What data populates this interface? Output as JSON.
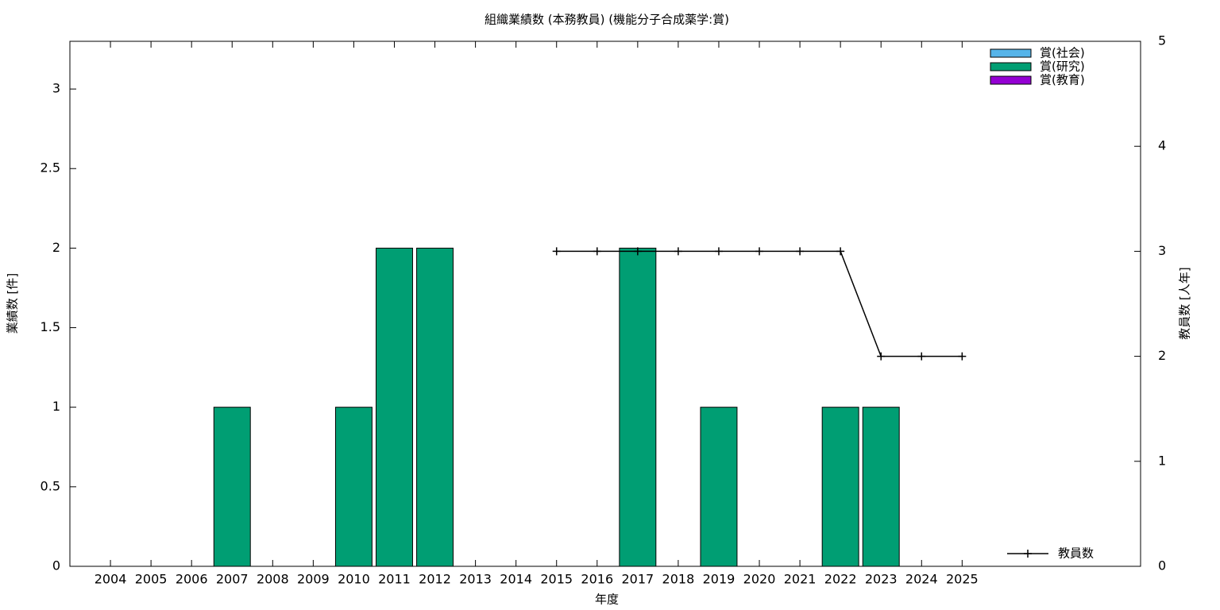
{
  "chart_data": {
    "type": "bar",
    "title": "組織業績数 (本務教員) (機能分子合成薬学:賞)",
    "x_label": "年度",
    "y_label": "業績数 [件]",
    "y2_label": "教員数 [人年]",
    "categories": [
      "2004",
      "2005",
      "2006",
      "2007",
      "2008",
      "2009",
      "2010",
      "2011",
      "2012",
      "2013",
      "2014",
      "2015",
      "2016",
      "2017",
      "2018",
      "2019",
      "2020",
      "2021",
      "2022",
      "2023",
      "2024",
      "2025"
    ],
    "stacked": true,
    "series": [
      {
        "name": "賞(社会)",
        "color": "#56b4e9",
        "values": [
          0,
          0,
          0,
          0,
          0,
          0,
          0,
          0,
          0,
          0,
          0,
          0,
          0,
          0,
          0,
          0,
          0,
          0,
          0,
          0,
          0,
          0
        ]
      },
      {
        "name": "賞(研究)",
        "color": "#009e73",
        "values": [
          0,
          0,
          0,
          1,
          0,
          0,
          1,
          2,
          2,
          0,
          0,
          0,
          0,
          2,
          0,
          1,
          0,
          0,
          1,
          1,
          0,
          0
        ]
      },
      {
        "name": "賞(教育)",
        "color": "#9400d3",
        "values": [
          0,
          0,
          0,
          0,
          0,
          0,
          0,
          0,
          0,
          0,
          0,
          0,
          0,
          0,
          0,
          0,
          0,
          0,
          0,
          0,
          0,
          0
        ]
      },
      {
        "name": "教員数",
        "type": "line",
        "axis": "y2",
        "color": "#000000",
        "values": [
          null,
          null,
          null,
          null,
          null,
          null,
          null,
          null,
          null,
          null,
          null,
          3,
          3,
          3,
          3,
          3,
          3,
          3,
          3,
          2,
          2,
          2
        ]
      }
    ],
    "ylim": [
      0,
      3.3
    ],
    "yticks": [
      0,
      0.5,
      1,
      1.5,
      2,
      2.5,
      3
    ],
    "y2lim": [
      0,
      5
    ],
    "y2ticks": [
      0,
      1,
      2,
      3,
      4,
      5
    ],
    "grid": false
  }
}
